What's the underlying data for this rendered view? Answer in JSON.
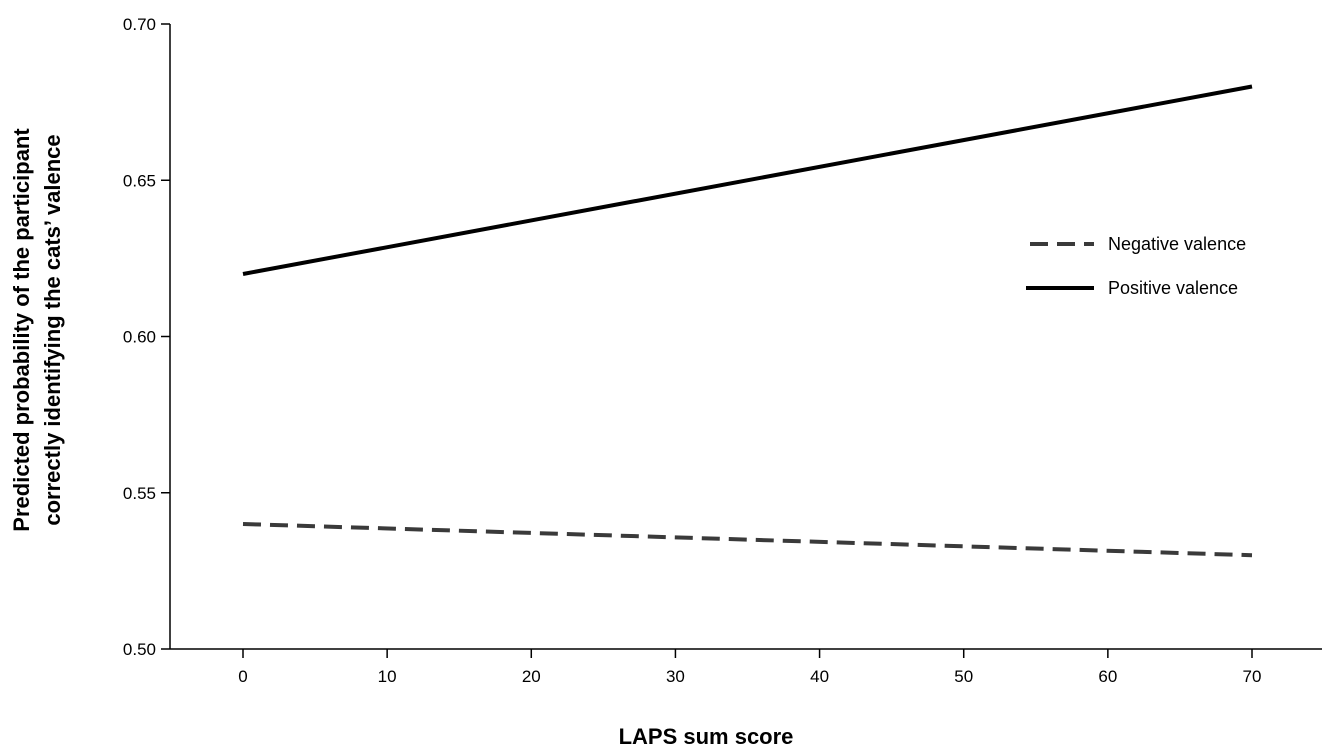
{
  "chart_data": {
    "type": "line",
    "title": "",
    "xlabel": "LAPS sum score",
    "ylabel_lines": [
      "Predicted probability of the participant",
      "correctly identifying the cats’ valence"
    ],
    "xlim": [
      -5,
      75
    ],
    "ylim": [
      0.5,
      0.7
    ],
    "xticks": [
      0,
      10,
      20,
      30,
      40,
      50,
      60,
      70
    ],
    "yticks": [
      0.7,
      0.65,
      0.6,
      0.55,
      0.5
    ],
    "ytick_labels": [
      "0.70",
      "0.65",
      "0.60",
      "0.55",
      "0.50"
    ],
    "grid": false,
    "legend_position": "right",
    "series": [
      {
        "name": "Negative valence",
        "style": "dashed",
        "color": "#3a3a3a",
        "x": [
          0,
          70
        ],
        "y": [
          0.54,
          0.53
        ]
      },
      {
        "name": "Positive valence",
        "style": "solid",
        "color": "#000000",
        "x": [
          0,
          70
        ],
        "y": [
          0.62,
          0.68
        ]
      }
    ]
  }
}
